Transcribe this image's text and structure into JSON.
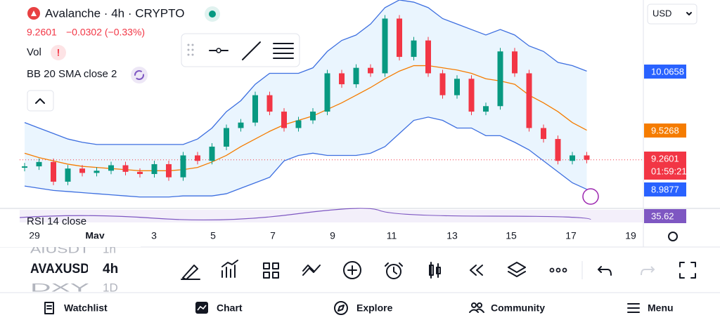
{
  "header": {
    "title": "Avalanche · 4h · CRYPTO",
    "price": "9.2601",
    "change": "−0.0302 (−0.33%)",
    "currency": "USD"
  },
  "indicators": {
    "volume": "Vol",
    "bollinger": "BB 20 SMA close 2",
    "rsi": "RSI 14 close"
  },
  "price_badges": {
    "upper": "10.0658",
    "middle": "9.5268",
    "last": "9.2601",
    "countdown": "01:59:21",
    "lower": "8.9877",
    "rsi": "35.62"
  },
  "dates": [
    "29",
    "May",
    "3",
    "5",
    "7",
    "9",
    "11",
    "13",
    "15",
    "17",
    "19"
  ],
  "chart": {
    "close": [
      9.2,
      9.24,
      9.06,
      9.18,
      9.14,
      9.16,
      9.21,
      9.15,
      9.13,
      9.22,
      9.1,
      9.3,
      9.25,
      9.38,
      9.55,
      9.6,
      9.85,
      9.7,
      9.55,
      9.62,
      9.7,
      10.05,
      9.95,
      10.1,
      10.05,
      10.55,
      10.2,
      10.35,
      10.05,
      9.85,
      10.0,
      9.7,
      9.75,
      10.25,
      10.05,
      9.55,
      9.45,
      9.25,
      9.3,
      9.26
    ],
    "bb_upper": [
      9.6,
      9.55,
      9.5,
      9.45,
      9.42,
      9.4,
      9.4,
      9.4,
      9.4,
      9.4,
      9.4,
      9.4,
      9.45,
      9.55,
      9.7,
      9.8,
      9.95,
      10.05,
      10.05,
      10.05,
      10.1,
      10.25,
      10.35,
      10.4,
      10.5,
      10.65,
      10.72,
      10.7,
      10.65,
      10.55,
      10.5,
      10.45,
      10.4,
      10.45,
      10.4,
      10.3,
      10.25,
      10.15,
      10.12,
      10.07
    ],
    "bb_middle": [
      9.32,
      9.28,
      9.25,
      9.22,
      9.2,
      9.19,
      9.18,
      9.17,
      9.16,
      9.16,
      9.16,
      9.17,
      9.19,
      9.24,
      9.3,
      9.38,
      9.45,
      9.52,
      9.58,
      9.62,
      9.66,
      9.72,
      9.78,
      9.85,
      9.92,
      10.0,
      10.07,
      10.12,
      10.12,
      10.1,
      10.08,
      10.05,
      10.0,
      9.98,
      9.95,
      9.85,
      9.78,
      9.7,
      9.6,
      9.53
    ],
    "bb_lower": [
      9.02,
      9.0,
      8.98,
      8.97,
      8.96,
      8.95,
      8.94,
      8.93,
      8.92,
      8.92,
      8.92,
      8.93,
      8.93,
      8.93,
      8.95,
      9.0,
      9.05,
      9.1,
      9.25,
      9.3,
      9.32,
      9.3,
      9.3,
      9.3,
      9.32,
      9.38,
      9.5,
      9.62,
      9.65,
      9.62,
      9.55,
      9.55,
      9.48,
      9.48,
      9.42,
      9.35,
      9.25,
      9.15,
      9.05,
      8.99
    ]
  },
  "symbols": [
    {
      "name": "AIUSDT",
      "interval": "1h"
    },
    {
      "name": "AVAXUSD",
      "interval": "4h"
    },
    {
      "name": "DXY",
      "interval": "1D"
    }
  ],
  "nav": [
    "Watchlist",
    "Chart",
    "Explore",
    "Community",
    "Menu"
  ]
}
